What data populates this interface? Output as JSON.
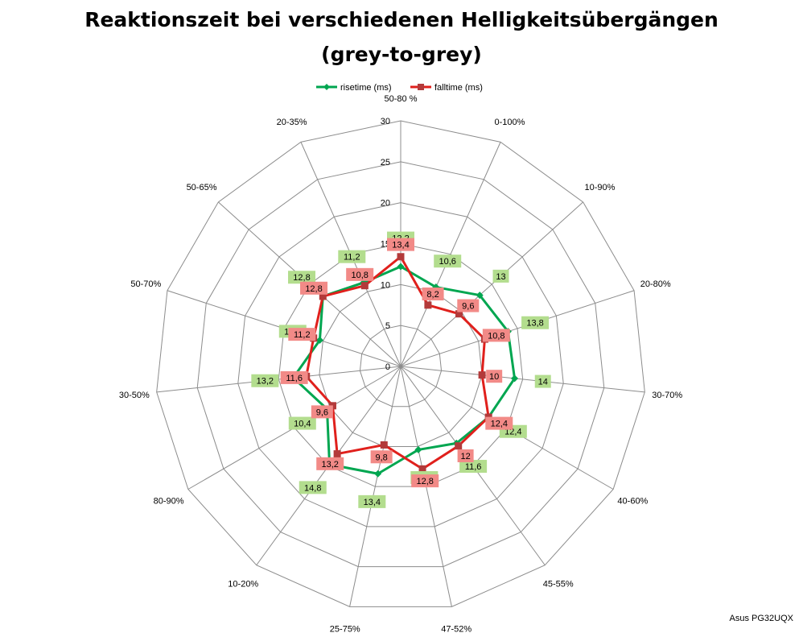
{
  "chart_data": {
    "type": "radar",
    "title_line1": "Reaktionszeit bei verschiedenen Helligkeitsübergängen",
    "title_line2": "(grey-to-grey)",
    "categories": [
      "50-80 %",
      "0-100%",
      "10-90%",
      "20-80%",
      "30-70%",
      "40-60%",
      "45-55%",
      "47-52%",
      "25-75%",
      "10-20%",
      "80-90%",
      "30-50%",
      "50-70%",
      "50-65%",
      "20-35%"
    ],
    "series": [
      {
        "name": "risetime (ms)",
        "color": "#00a650",
        "label_bg": "#b3dd8e",
        "values": [
          12.2,
          10.6,
          13,
          13.8,
          14,
          12.4,
          11.6,
          10.4,
          13.4,
          14.8,
          10.4,
          13.2,
          10.4,
          12.8,
          11.2
        ]
      },
      {
        "name": "falltime (ms)",
        "color": "#e0201c",
        "label_bg": "#f28a87",
        "values": [
          13.4,
          8.2,
          9.6,
          10.8,
          10,
          12.4,
          12,
          12.8,
          9.8,
          13.2,
          9.6,
          11.6,
          11.2,
          12.8,
          10.8
        ]
      }
    ],
    "rlim": [
      0,
      30
    ],
    "ticks": [
      0,
      5,
      10,
      15,
      20,
      25,
      30
    ],
    "grid": true,
    "legend_position": "top"
  },
  "watermark": "Asus PG32UQX"
}
